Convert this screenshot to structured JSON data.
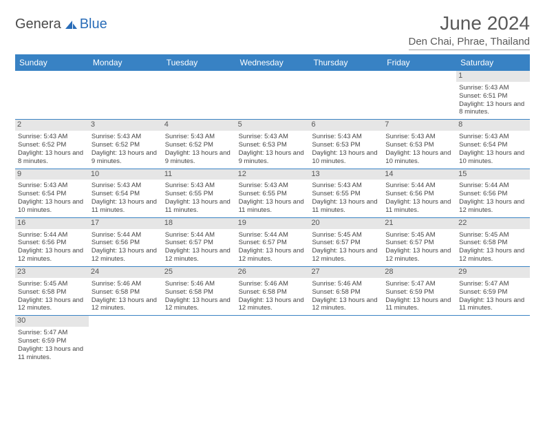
{
  "logo": {
    "part1": "Genera",
    "part2": "Blue"
  },
  "title": "June 2024",
  "location": "Den Chai, Phrae, Thailand",
  "colors": {
    "header_bg": "#3882c4",
    "header_text": "#ffffff",
    "daynum_bg": "#e6e6e6",
    "row_border": "#3882c4",
    "logo_gray": "#4a4a4a",
    "logo_blue": "#2a6db8"
  },
  "weekdays": [
    "Sunday",
    "Monday",
    "Tuesday",
    "Wednesday",
    "Thursday",
    "Friday",
    "Saturday"
  ],
  "weeks": [
    [
      null,
      null,
      null,
      null,
      null,
      null,
      {
        "n": "1",
        "sr": "5:43 AM",
        "ss": "6:51 PM",
        "dl": "13 hours and 8 minutes."
      }
    ],
    [
      {
        "n": "2",
        "sr": "5:43 AM",
        "ss": "6:52 PM",
        "dl": "13 hours and 8 minutes."
      },
      {
        "n": "3",
        "sr": "5:43 AM",
        "ss": "6:52 PM",
        "dl": "13 hours and 9 minutes."
      },
      {
        "n": "4",
        "sr": "5:43 AM",
        "ss": "6:52 PM",
        "dl": "13 hours and 9 minutes."
      },
      {
        "n": "5",
        "sr": "5:43 AM",
        "ss": "6:53 PM",
        "dl": "13 hours and 9 minutes."
      },
      {
        "n": "6",
        "sr": "5:43 AM",
        "ss": "6:53 PM",
        "dl": "13 hours and 10 minutes."
      },
      {
        "n": "7",
        "sr": "5:43 AM",
        "ss": "6:53 PM",
        "dl": "13 hours and 10 minutes."
      },
      {
        "n": "8",
        "sr": "5:43 AM",
        "ss": "6:54 PM",
        "dl": "13 hours and 10 minutes."
      }
    ],
    [
      {
        "n": "9",
        "sr": "5:43 AM",
        "ss": "6:54 PM",
        "dl": "13 hours and 10 minutes."
      },
      {
        "n": "10",
        "sr": "5:43 AM",
        "ss": "6:54 PM",
        "dl": "13 hours and 11 minutes."
      },
      {
        "n": "11",
        "sr": "5:43 AM",
        "ss": "6:55 PM",
        "dl": "13 hours and 11 minutes."
      },
      {
        "n": "12",
        "sr": "5:43 AM",
        "ss": "6:55 PM",
        "dl": "13 hours and 11 minutes."
      },
      {
        "n": "13",
        "sr": "5:43 AM",
        "ss": "6:55 PM",
        "dl": "13 hours and 11 minutes."
      },
      {
        "n": "14",
        "sr": "5:44 AM",
        "ss": "6:56 PM",
        "dl": "13 hours and 11 minutes."
      },
      {
        "n": "15",
        "sr": "5:44 AM",
        "ss": "6:56 PM",
        "dl": "13 hours and 12 minutes."
      }
    ],
    [
      {
        "n": "16",
        "sr": "5:44 AM",
        "ss": "6:56 PM",
        "dl": "13 hours and 12 minutes."
      },
      {
        "n": "17",
        "sr": "5:44 AM",
        "ss": "6:56 PM",
        "dl": "13 hours and 12 minutes."
      },
      {
        "n": "18",
        "sr": "5:44 AM",
        "ss": "6:57 PM",
        "dl": "13 hours and 12 minutes."
      },
      {
        "n": "19",
        "sr": "5:44 AM",
        "ss": "6:57 PM",
        "dl": "13 hours and 12 minutes."
      },
      {
        "n": "20",
        "sr": "5:45 AM",
        "ss": "6:57 PM",
        "dl": "13 hours and 12 minutes."
      },
      {
        "n": "21",
        "sr": "5:45 AM",
        "ss": "6:57 PM",
        "dl": "13 hours and 12 minutes."
      },
      {
        "n": "22",
        "sr": "5:45 AM",
        "ss": "6:58 PM",
        "dl": "13 hours and 12 minutes."
      }
    ],
    [
      {
        "n": "23",
        "sr": "5:45 AM",
        "ss": "6:58 PM",
        "dl": "13 hours and 12 minutes."
      },
      {
        "n": "24",
        "sr": "5:46 AM",
        "ss": "6:58 PM",
        "dl": "13 hours and 12 minutes."
      },
      {
        "n": "25",
        "sr": "5:46 AM",
        "ss": "6:58 PM",
        "dl": "13 hours and 12 minutes."
      },
      {
        "n": "26",
        "sr": "5:46 AM",
        "ss": "6:58 PM",
        "dl": "13 hours and 12 minutes."
      },
      {
        "n": "27",
        "sr": "5:46 AM",
        "ss": "6:58 PM",
        "dl": "13 hours and 12 minutes."
      },
      {
        "n": "28",
        "sr": "5:47 AM",
        "ss": "6:59 PM",
        "dl": "13 hours and 11 minutes."
      },
      {
        "n": "29",
        "sr": "5:47 AM",
        "ss": "6:59 PM",
        "dl": "13 hours and 11 minutes."
      }
    ],
    [
      {
        "n": "30",
        "sr": "5:47 AM",
        "ss": "6:59 PM",
        "dl": "13 hours and 11 minutes."
      },
      null,
      null,
      null,
      null,
      null,
      null
    ]
  ],
  "labels": {
    "sunrise": "Sunrise:",
    "sunset": "Sunset:",
    "daylight": "Daylight:"
  }
}
